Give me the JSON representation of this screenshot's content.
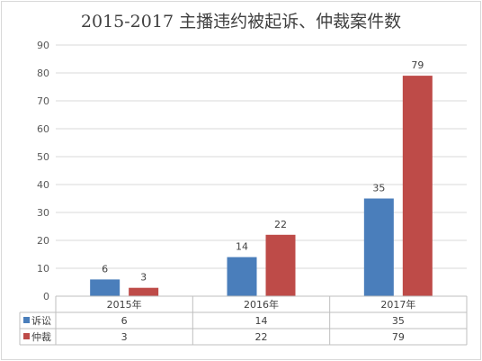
{
  "chart_data": {
    "type": "bar",
    "title": "2015-2017 主播违约被起诉、仲裁案件数",
    "categories": [
      "2015年",
      "2016年",
      "2017年"
    ],
    "series": [
      {
        "name": "诉讼",
        "values": [
          6,
          14,
          35
        ],
        "color": "#4a7ebb"
      },
      {
        "name": "仲裁",
        "values": [
          3,
          22,
          79
        ],
        "color": "#be4b48"
      }
    ],
    "ylim": [
      0,
      90
    ],
    "yticks": [
      0,
      10,
      20,
      30,
      40,
      50,
      60,
      70,
      80,
      90
    ],
    "grid": true,
    "data_labels": true,
    "legend": "data-table-below"
  }
}
